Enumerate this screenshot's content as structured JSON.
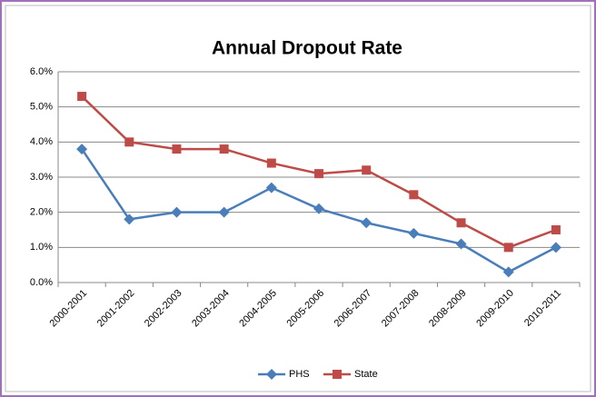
{
  "chart_data": {
    "type": "line",
    "title": "Annual Dropout Rate",
    "categories": [
      "2000-2001",
      "2001-2002",
      "2002-2003",
      "2003-2004",
      "2004-2005",
      "2005-2006",
      "2006-2007",
      "2007-2008",
      "2008-2009",
      "2009-2010",
      "2010-2011"
    ],
    "series": [
      {
        "name": "PHS",
        "color": "#4a7ebb",
        "marker": "diamond",
        "values": [
          3.8,
          1.8,
          2.0,
          2.0,
          2.7,
          2.1,
          1.7,
          1.4,
          1.1,
          0.3,
          1.0
        ]
      },
      {
        "name": "State",
        "color": "#be4b48",
        "marker": "square",
        "values": [
          5.3,
          4.0,
          3.8,
          3.8,
          3.4,
          3.1,
          3.2,
          2.5,
          1.7,
          1.0,
          1.5
        ]
      }
    ],
    "ylim": [
      0,
      6
    ],
    "yticks": [
      {
        "value": 0,
        "label": "0.0%"
      },
      {
        "value": 1,
        "label": "1.0%"
      },
      {
        "value": 2,
        "label": "2.0%"
      },
      {
        "value": 3,
        "label": "3.0%"
      },
      {
        "value": 4,
        "label": "4.0%"
      },
      {
        "value": 5,
        "label": "5.0%"
      },
      {
        "value": 6,
        "label": "6.0%"
      }
    ],
    "grid": true,
    "legend": "bottom"
  }
}
